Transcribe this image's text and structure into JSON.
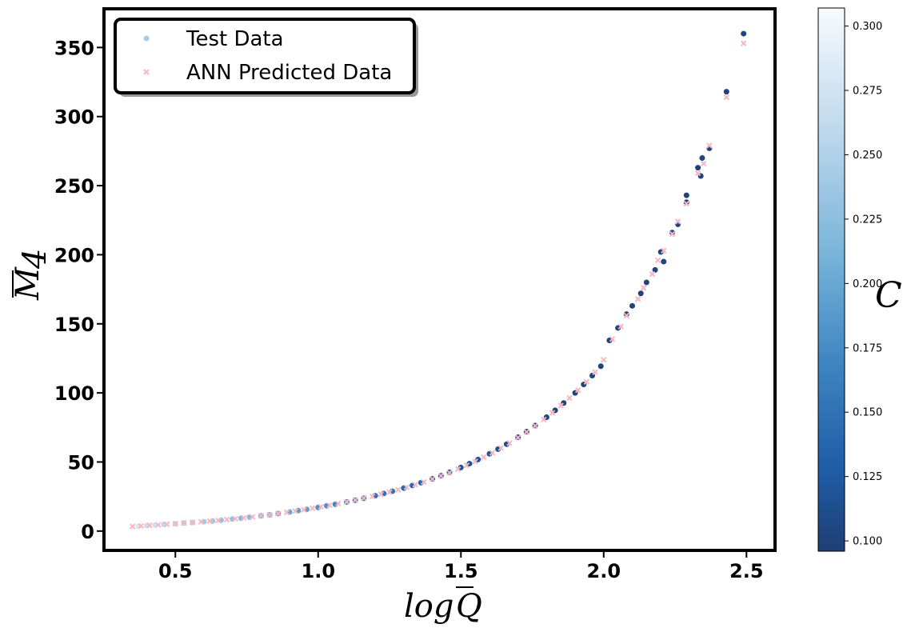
{
  "chart_data": {
    "type": "scatter",
    "title": "",
    "xlabel": "log Q̄",
    "ylabel": "M̄",
    "ylabel_sub": "4",
    "xlim": [
      0.25,
      2.6
    ],
    "ylim": [
      -14,
      378
    ],
    "xticks": [
      0.5,
      1.0,
      1.5,
      2.0,
      2.5
    ],
    "xtick_labels": [
      "0.5",
      "1.0",
      "1.5",
      "2.0",
      "2.5"
    ],
    "yticks": [
      0,
      50,
      100,
      150,
      200,
      250,
      300,
      350
    ],
    "ytick_labels": [
      "0",
      "50",
      "100",
      "150",
      "200",
      "250",
      "300",
      "350"
    ],
    "grid": false,
    "legend_position": "top-left",
    "series": [
      {
        "name": "Test Data",
        "marker": "circle",
        "legend_color": "#a9cce3",
        "colored_by": "C",
        "note_model": "M = 4.6*exp(1.75*(x-0.4)) - 1 approx",
        "points": [
          [
            0.37,
            3.5
          ],
          [
            0.4,
            4.0
          ],
          [
            0.43,
            4.4
          ],
          [
            0.46,
            4.8
          ],
          [
            0.5,
            5.3
          ],
          [
            0.53,
            5.8
          ],
          [
            0.56,
            6.2
          ],
          [
            0.6,
            6.8
          ],
          [
            0.63,
            7.3
          ],
          [
            0.66,
            7.9
          ],
          [
            0.7,
            8.7
          ],
          [
            0.73,
            9.3
          ],
          [
            0.76,
            10.0
          ],
          [
            0.8,
            11.0
          ],
          [
            0.83,
            11.8
          ],
          [
            0.86,
            12.6
          ],
          [
            0.9,
            13.8
          ],
          [
            0.93,
            14.8
          ],
          [
            0.96,
            15.7
          ],
          [
            1.0,
            17.1
          ],
          [
            1.03,
            18.3
          ],
          [
            1.06,
            19.4
          ],
          [
            1.1,
            21.0
          ],
          [
            1.13,
            22.3
          ],
          [
            1.16,
            23.7
          ],
          [
            1.2,
            25.6
          ],
          [
            1.23,
            27.2
          ],
          [
            1.26,
            28.8
          ],
          [
            1.3,
            31.1
          ],
          [
            1.33,
            33.0
          ],
          [
            1.36,
            35.0
          ],
          [
            1.4,
            37.8
          ],
          [
            1.43,
            40.1
          ],
          [
            1.46,
            42.6
          ],
          [
            1.5,
            46.0
          ],
          [
            1.53,
            48.8
          ],
          [
            1.56,
            51.8
          ],
          [
            1.6,
            55.9
          ],
          [
            1.63,
            59.3
          ],
          [
            1.66,
            62.9
          ],
          [
            1.7,
            67.9
          ],
          [
            1.73,
            72.0
          ],
          [
            1.76,
            76.4
          ],
          [
            1.8,
            82.4
          ],
          [
            1.83,
            87.4
          ],
          [
            1.86,
            92.7
          ],
          [
            1.9,
            100.0
          ],
          [
            1.93,
            106.1
          ],
          [
            1.96,
            112.5
          ],
          [
            1.99,
            119.3
          ],
          [
            2.02,
            138.0
          ],
          [
            2.05,
            147.0
          ],
          [
            2.08,
            157.0
          ],
          [
            2.1,
            163.0
          ],
          [
            2.13,
            172.0
          ],
          [
            2.15,
            180.0
          ],
          [
            2.18,
            189.0
          ],
          [
            2.2,
            202.0
          ],
          [
            2.21,
            195.0
          ],
          [
            2.24,
            216.0
          ],
          [
            2.26,
            222.0
          ],
          [
            2.29,
            243.0
          ],
          [
            2.29,
            238.0
          ],
          [
            2.33,
            263.0
          ],
          [
            2.34,
            257.0
          ],
          [
            2.345,
            270.0
          ],
          [
            2.37,
            277.0
          ],
          [
            2.43,
            318.0
          ],
          [
            2.49,
            360.0
          ]
        ],
        "c_values": [
          0.28,
          0.27,
          0.27,
          0.26,
          0.26,
          0.25,
          0.25,
          0.24,
          0.24,
          0.23,
          0.23,
          0.22,
          0.22,
          0.21,
          0.21,
          0.2,
          0.2,
          0.19,
          0.19,
          0.18,
          0.18,
          0.17,
          0.17,
          0.16,
          0.16,
          0.15,
          0.15,
          0.15,
          0.14,
          0.14,
          0.14,
          0.13,
          0.13,
          0.13,
          0.12,
          0.12,
          0.12,
          0.12,
          0.11,
          0.11,
          0.11,
          0.11,
          0.11,
          0.1,
          0.1,
          0.1,
          0.1,
          0.1,
          0.1,
          0.1,
          0.1,
          0.1,
          0.1,
          0.1,
          0.1,
          0.1,
          0.1,
          0.1,
          0.1,
          0.1,
          0.1,
          0.1,
          0.1,
          0.1,
          0.1,
          0.1,
          0.1,
          0.1,
          0.1
        ]
      },
      {
        "name": "ANN Predicted Data",
        "marker": "x",
        "color": "#f7b6c2",
        "points": [
          [
            0.35,
            3.3
          ],
          [
            0.38,
            3.7
          ],
          [
            0.41,
            4.1
          ],
          [
            0.44,
            4.5
          ],
          [
            0.47,
            4.9
          ],
          [
            0.5,
            5.3
          ],
          [
            0.53,
            5.8
          ],
          [
            0.56,
            6.2
          ],
          [
            0.59,
            6.7
          ],
          [
            0.62,
            7.2
          ],
          [
            0.65,
            7.7
          ],
          [
            0.68,
            8.3
          ],
          [
            0.71,
            8.9
          ],
          [
            0.74,
            9.5
          ],
          [
            0.77,
            10.2
          ],
          [
            0.8,
            11.0
          ],
          [
            0.83,
            11.8
          ],
          [
            0.86,
            12.6
          ],
          [
            0.89,
            13.5
          ],
          [
            0.92,
            14.4
          ],
          [
            0.95,
            15.4
          ],
          [
            0.98,
            16.5
          ],
          [
            1.01,
            17.6
          ],
          [
            1.04,
            18.7
          ],
          [
            1.07,
            19.9
          ],
          [
            1.1,
            21.1
          ],
          [
            1.13,
            22.4
          ],
          [
            1.16,
            23.8
          ],
          [
            1.19,
            25.1
          ],
          [
            1.22,
            26.6
          ],
          [
            1.25,
            28.2
          ],
          [
            1.28,
            29.9
          ],
          [
            1.31,
            31.7
          ],
          [
            1.34,
            33.5
          ],
          [
            1.37,
            35.5
          ],
          [
            1.4,
            37.6
          ],
          [
            1.43,
            39.9
          ],
          [
            1.46,
            42.2
          ],
          [
            1.49,
            44.8
          ],
          [
            1.52,
            47.5
          ],
          [
            1.55,
            50.4
          ],
          [
            1.58,
            53.4
          ],
          [
            1.61,
            56.6
          ],
          [
            1.64,
            60.1
          ],
          [
            1.67,
            63.7
          ],
          [
            1.7,
            67.6
          ],
          [
            1.73,
            71.7
          ],
          [
            1.76,
            76.1
          ],
          [
            1.79,
            80.7
          ],
          [
            1.82,
            85.6
          ],
          [
            1.85,
            90.8
          ],
          [
            1.88,
            96.3
          ],
          [
            1.91,
            102.0
          ],
          [
            1.94,
            108.0
          ],
          [
            1.97,
            115.0
          ],
          [
            2.0,
            124.0
          ],
          [
            2.03,
            139.0
          ],
          [
            2.06,
            148.0
          ],
          [
            2.08,
            156.0
          ],
          [
            2.12,
            168.0
          ],
          [
            2.14,
            176.0
          ],
          [
            2.17,
            186.0
          ],
          [
            2.19,
            196.0
          ],
          [
            2.21,
            203.0
          ],
          [
            2.24,
            215.0
          ],
          [
            2.26,
            224.0
          ],
          [
            2.29,
            237.0
          ],
          [
            2.33,
            259.0
          ],
          [
            2.35,
            266.0
          ],
          [
            2.37,
            279.0
          ],
          [
            2.43,
            314.0
          ],
          [
            2.49,
            353.0
          ]
        ]
      }
    ],
    "colorbar": {
      "label": "C",
      "cmap": "Blues_r",
      "vmin": 0.096,
      "vmax": 0.307,
      "ticks": [
        0.1,
        0.125,
        0.15,
        0.175,
        0.2,
        0.225,
        0.25,
        0.275,
        0.3
      ],
      "tick_labels": [
        "0.100",
        "0.125",
        "0.150",
        "0.175",
        "0.200",
        "0.225",
        "0.250",
        "0.275",
        "0.300"
      ],
      "color_low": "#1f3f74",
      "color_high": "#f7fbff"
    }
  }
}
